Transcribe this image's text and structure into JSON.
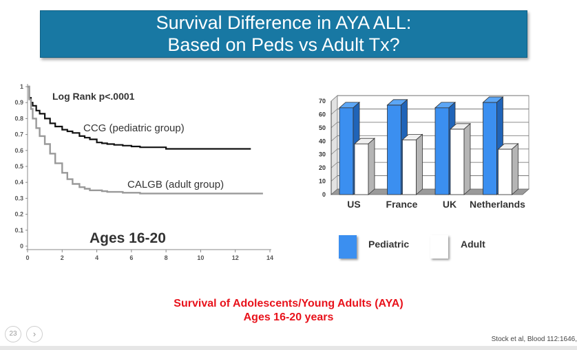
{
  "slide": {
    "title_line1": "Survival Difference in AYA ALL:",
    "title_line2": "Based on Peds vs Adult Tx?",
    "caption_line1": "Survival of Adolescents/Young  Adults (AYA)",
    "caption_line2": "Ages 16-20 years",
    "citation": "Stock et al, Blood 112:1646,",
    "page_number": "23",
    "next_icon": "chevron-right-icon"
  },
  "colors": {
    "title_bg": "#1878a3",
    "pediatric": "#3b8ff0",
    "adult": "#ffffff",
    "ccg_curve": "#111111",
    "calgb_curve": "#999999",
    "caption": "#e8121b"
  },
  "chart_data": [
    {
      "type": "line",
      "title": "Ages 16-20",
      "annotation": "Log Rank p<.0001",
      "xlabel": "",
      "ylabel": "",
      "xlim": [
        0,
        14
      ],
      "ylim": [
        0,
        1
      ],
      "x_ticks": [
        "0",
        "2",
        "4",
        "6",
        "8",
        "10",
        "12",
        "14"
      ],
      "y_ticks": [
        {
          "value": 1,
          "label": "1"
        },
        {
          "value": 0.9,
          "label": "0.9"
        },
        {
          "value": 0.8,
          "label": "0.8"
        },
        {
          "value": 0.7,
          "label": "0.7"
        },
        {
          "value": 0.6,
          "label": "0.6"
        },
        {
          "value": 0.5,
          "label": "0.5"
        },
        {
          "value": 0.4,
          "label": "0.4"
        },
        {
          "value": 0.3,
          "label": "0.3"
        },
        {
          "value": 0.2,
          "label": "0.2"
        },
        {
          "value": 0.1,
          "label": "0.1"
        },
        {
          "value": 0,
          "label": "0"
        }
      ],
      "series": [
        {
          "name": "CCG (pediatric group)",
          "x": [
            0,
            0.1,
            0.2,
            0.3,
            0.5,
            0.7,
            1.0,
            1.3,
            1.6,
            2.0,
            2.3,
            2.6,
            3.0,
            3.3,
            3.6,
            4.0,
            4.3,
            4.6,
            5.0,
            5.5,
            6.0,
            6.5,
            7.0,
            8.0,
            9.0,
            10.0,
            11.0,
            12.0,
            12.9
          ],
          "y": [
            1.0,
            0.93,
            0.9,
            0.88,
            0.85,
            0.83,
            0.8,
            0.77,
            0.75,
            0.73,
            0.72,
            0.71,
            0.69,
            0.68,
            0.67,
            0.65,
            0.645,
            0.64,
            0.635,
            0.63,
            0.625,
            0.62,
            0.62,
            0.61,
            0.61,
            0.61,
            0.61,
            0.61,
            0.61
          ]
        },
        {
          "name": "CALGB (adult group)",
          "x": [
            0,
            0.1,
            0.2,
            0.3,
            0.5,
            0.7,
            1.0,
            1.3,
            1.6,
            2.0,
            2.3,
            2.6,
            3.0,
            3.3,
            3.6,
            4.0,
            4.3,
            4.6,
            5.0,
            5.5,
            6.0,
            6.5,
            7.0,
            8.0,
            9.0,
            10.0,
            11.0,
            12.0,
            13.0,
            13.6
          ],
          "y": [
            1.0,
            0.92,
            0.86,
            0.8,
            0.74,
            0.69,
            0.64,
            0.58,
            0.52,
            0.46,
            0.42,
            0.39,
            0.37,
            0.36,
            0.35,
            0.35,
            0.345,
            0.34,
            0.34,
            0.335,
            0.335,
            0.33,
            0.33,
            0.33,
            0.33,
            0.33,
            0.33,
            0.33,
            0.33,
            0.33
          ]
        }
      ]
    },
    {
      "type": "bar",
      "title": "",
      "xlabel": "",
      "ylabel": "",
      "categories": [
        "US",
        "France",
        "UK",
        "Netherlands"
      ],
      "ylim": [
        0,
        70
      ],
      "y_ticks": [
        "0",
        "10",
        "20",
        "30",
        "40",
        "50",
        "60",
        "70"
      ],
      "series": [
        {
          "name": "Pediatric",
          "values": [
            65,
            67,
            65,
            69
          ]
        },
        {
          "name": "Adult",
          "values": [
            38,
            41,
            49,
            34
          ]
        }
      ],
      "legend": "bottom"
    }
  ]
}
